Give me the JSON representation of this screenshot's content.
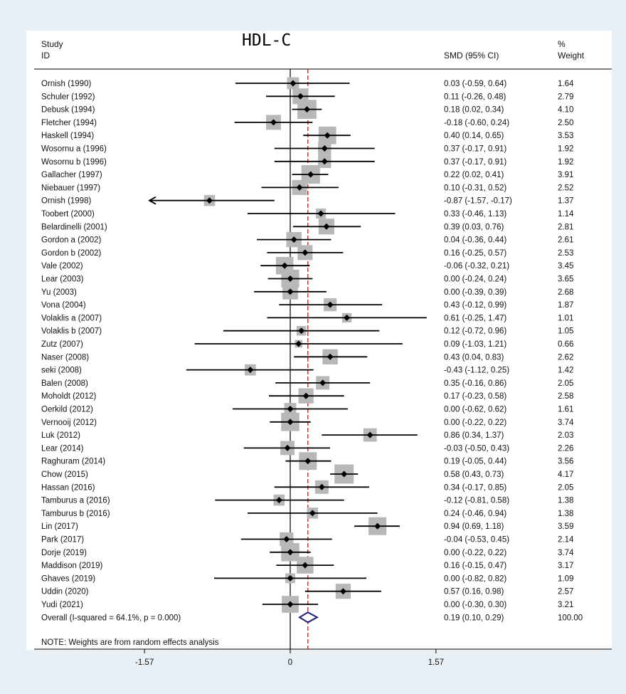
{
  "header": {
    "study_line1": "Study",
    "study_line2": "ID",
    "smd": "SMD (95% CI)",
    "weight_line1": "%",
    "weight_line2": "Weight"
  },
  "colors": {
    "page_background": "#e8eff5",
    "panel_background": "#ffffff",
    "weight_box": "#b8b8b8",
    "point": "#000000",
    "ci_line": "#000000",
    "null_line": "#000000",
    "overall_line": "#b22222",
    "overall_diamond": "#1a1a7a"
  },
  "chart_data": {
    "type": "forest",
    "title": "HDL-C",
    "measure": "SMD (95% CI)",
    "effect_model": "random effects",
    "xlim": [
      -1.1,
      1.57
    ],
    "ticks": [
      -1.57,
      0,
      1.57
    ],
    "tick_labels": [
      "-1.57",
      "0",
      "1.57"
    ],
    "null_value": 0,
    "studies": [
      {
        "id": "Ornish (1990)",
        "smd": 0.03,
        "lo": -0.59,
        "hi": 0.64,
        "ci_text": "0.03 (-0.59, 0.64)",
        "weight": "1.64"
      },
      {
        "id": "Schuler (1992)",
        "smd": 0.11,
        "lo": -0.26,
        "hi": 0.48,
        "ci_text": "0.11 (-0.26, 0.48)",
        "weight": "2.79"
      },
      {
        "id": "Debusk (1994)",
        "smd": 0.18,
        "lo": 0.02,
        "hi": 0.34,
        "ci_text": "0.18 (0.02, 0.34)",
        "weight": "4.10"
      },
      {
        "id": "Fletcher (1994)",
        "smd": -0.18,
        "lo": -0.6,
        "hi": 0.24,
        "ci_text": "-0.18 (-0.60, 0.24)",
        "weight": "2.50"
      },
      {
        "id": "Haskell (1994)",
        "smd": 0.4,
        "lo": 0.14,
        "hi": 0.65,
        "ci_text": "0.40 (0.14, 0.65)",
        "weight": "3.53"
      },
      {
        "id": "Wosornu a (1996)",
        "smd": 0.37,
        "lo": -0.17,
        "hi": 0.91,
        "ci_text": "0.37 (-0.17, 0.91)",
        "weight": "1.92"
      },
      {
        "id": "Wosornu b (1996)",
        "smd": 0.37,
        "lo": -0.17,
        "hi": 0.91,
        "ci_text": "0.37 (-0.17, 0.91)",
        "weight": "1.92"
      },
      {
        "id": "Gallacher (1997)",
        "smd": 0.22,
        "lo": 0.02,
        "hi": 0.41,
        "ci_text": "0.22 (0.02, 0.41)",
        "weight": "3.91"
      },
      {
        "id": "Niebauer (1997)",
        "smd": 0.1,
        "lo": -0.31,
        "hi": 0.52,
        "ci_text": "0.10 (-0.31, 0.52)",
        "weight": "2.52"
      },
      {
        "id": "Ornish (1998)",
        "smd": -0.87,
        "lo": -1.57,
        "hi": -0.17,
        "ci_text": "-0.87 (-1.57, -0.17)",
        "weight": "1.37"
      },
      {
        "id": "Toobert (2000)",
        "smd": 0.33,
        "lo": -0.46,
        "hi": 1.13,
        "ci_text": "0.33 (-0.46, 1.13)",
        "weight": "1.14"
      },
      {
        "id": "Belardinelli (2001)",
        "smd": 0.39,
        "lo": 0.03,
        "hi": 0.76,
        "ci_text": "0.39 (0.03, 0.76)",
        "weight": "2.81"
      },
      {
        "id": "Gordon a (2002)",
        "smd": 0.04,
        "lo": -0.36,
        "hi": 0.44,
        "ci_text": "0.04 (-0.36, 0.44)",
        "weight": "2.61"
      },
      {
        "id": "Gordon b (2002)",
        "smd": 0.16,
        "lo": -0.25,
        "hi": 0.57,
        "ci_text": "0.16 (-0.25, 0.57)",
        "weight": "2.53"
      },
      {
        "id": "Vale (2002)",
        "smd": -0.06,
        "lo": -0.32,
        "hi": 0.21,
        "ci_text": "-0.06 (-0.32, 0.21)",
        "weight": "3.45"
      },
      {
        "id": "Lear (2003)",
        "smd": 0.0,
        "lo": -0.24,
        "hi": 0.24,
        "ci_text": "0.00 (-0.24, 0.24)",
        "weight": "3.65"
      },
      {
        "id": "Yu (2003)",
        "smd": 0.0,
        "lo": -0.39,
        "hi": 0.39,
        "ci_text": "0.00 (-0.39, 0.39)",
        "weight": "2.68"
      },
      {
        "id": "Vona (2004)",
        "smd": 0.43,
        "lo": -0.12,
        "hi": 0.99,
        "ci_text": "0.43 (-0.12, 0.99)",
        "weight": "1.87"
      },
      {
        "id": "Volaklis a (2007)",
        "smd": 0.61,
        "lo": -0.25,
        "hi": 1.47,
        "ci_text": "0.61 (-0.25, 1.47)",
        "weight": "1.01"
      },
      {
        "id": "Volaklis b (2007)",
        "smd": 0.12,
        "lo": -0.72,
        "hi": 0.96,
        "ci_text": "0.12 (-0.72, 0.96)",
        "weight": "1.05"
      },
      {
        "id": "Zutz (2007)",
        "smd": 0.09,
        "lo": -1.03,
        "hi": 1.21,
        "ci_text": "0.09 (-1.03, 1.21)",
        "weight": "0.66"
      },
      {
        "id": "Naser (2008)",
        "smd": 0.43,
        "lo": 0.04,
        "hi": 0.83,
        "ci_text": "0.43 (0.04, 0.83)",
        "weight": "2.62"
      },
      {
        "id": "seki (2008)",
        "smd": -0.43,
        "lo": -1.12,
        "hi": 0.25,
        "ci_text": "-0.43 (-1.12, 0.25)",
        "weight": "1.42"
      },
      {
        "id": "Balen (2008)",
        "smd": 0.35,
        "lo": -0.16,
        "hi": 0.86,
        "ci_text": "0.35 (-0.16, 0.86)",
        "weight": "2.05"
      },
      {
        "id": "Moholdt (2012)",
        "smd": 0.17,
        "lo": -0.23,
        "hi": 0.58,
        "ci_text": "0.17 (-0.23, 0.58)",
        "weight": "2.58"
      },
      {
        "id": "Oerkild (2012)",
        "smd": 0.0,
        "lo": -0.62,
        "hi": 0.62,
        "ci_text": "0.00 (-0.62, 0.62)",
        "weight": "1.61"
      },
      {
        "id": "Vernooij (2012)",
        "smd": 0.0,
        "lo": -0.22,
        "hi": 0.22,
        "ci_text": "0.00 (-0.22, 0.22)",
        "weight": "3.74"
      },
      {
        "id": "Luk (2012)",
        "smd": 0.86,
        "lo": 0.34,
        "hi": 1.37,
        "ci_text": "0.86 (0.34, 1.37)",
        "weight": "2.03"
      },
      {
        "id": "Lear (2014)",
        "smd": -0.03,
        "lo": -0.5,
        "hi": 0.43,
        "ci_text": "-0.03 (-0.50, 0.43)",
        "weight": "2.26"
      },
      {
        "id": "Raghuram (2014)",
        "smd": 0.19,
        "lo": -0.05,
        "hi": 0.44,
        "ci_text": "0.19 (-0.05, 0.44)",
        "weight": "3.56"
      },
      {
        "id": "Chow (2015)",
        "smd": 0.58,
        "lo": 0.43,
        "hi": 0.73,
        "ci_text": "0.58 (0.43, 0.73)",
        "weight": "4.17"
      },
      {
        "id": "Hassan (2016)",
        "smd": 0.34,
        "lo": -0.17,
        "hi": 0.85,
        "ci_text": "0.34 (-0.17, 0.85)",
        "weight": "2.05"
      },
      {
        "id": "Tamburus a (2016)",
        "smd": -0.12,
        "lo": -0.81,
        "hi": 0.58,
        "ci_text": "-0.12 (-0.81, 0.58)",
        "weight": "1.38"
      },
      {
        "id": "Tamburus b (2016)",
        "smd": 0.24,
        "lo": -0.46,
        "hi": 0.94,
        "ci_text": "0.24 (-0.46, 0.94)",
        "weight": "1.38"
      },
      {
        "id": "Lin (2017)",
        "smd": 0.94,
        "lo": 0.69,
        "hi": 1.18,
        "ci_text": "0.94 (0.69, 1.18)",
        "weight": "3.59"
      },
      {
        "id": "Park (2017)",
        "smd": -0.04,
        "lo": -0.53,
        "hi": 0.45,
        "ci_text": "-0.04 (-0.53, 0.45)",
        "weight": "2.14"
      },
      {
        "id": "Dorje (2019)",
        "smd": 0.0,
        "lo": -0.22,
        "hi": 0.22,
        "ci_text": "0.00 (-0.22, 0.22)",
        "weight": "3.74"
      },
      {
        "id": "Maddison (2019)",
        "smd": 0.16,
        "lo": -0.15,
        "hi": 0.47,
        "ci_text": "0.16 (-0.15, 0.47)",
        "weight": "3.17"
      },
      {
        "id": "Ghaves (2019)",
        "smd": 0.0,
        "lo": -0.82,
        "hi": 0.82,
        "ci_text": "0.00 (-0.82, 0.82)",
        "weight": "1.09"
      },
      {
        "id": "Uddin (2020)",
        "smd": 0.57,
        "lo": 0.16,
        "hi": 0.98,
        "ci_text": "0.57 (0.16, 0.98)",
        "weight": "2.57"
      },
      {
        "id": "Yudi (2021)",
        "smd": 0.0,
        "lo": -0.3,
        "hi": 0.3,
        "ci_text": "0.00 (-0.30, 0.30)",
        "weight": "3.21"
      }
    ],
    "overall": {
      "label": "Overall  (I-squared = 64.1%, p = 0.000)",
      "smd": 0.19,
      "lo": 0.1,
      "hi": 0.29,
      "ci_text": "0.19 (0.10, 0.29)",
      "weight": "100.00"
    },
    "note": "NOTE: Weights are from random effects analysis"
  }
}
